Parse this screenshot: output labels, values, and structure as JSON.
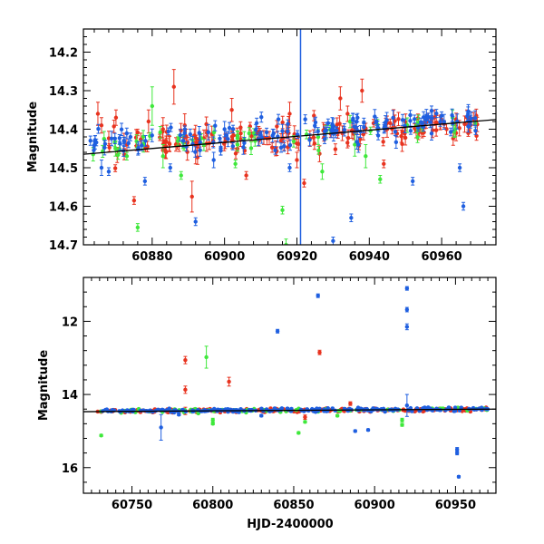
{
  "colors": {
    "red": "#e8331f",
    "green": "#3fe83b",
    "blue": "#1f5fe0",
    "fit": "#000000",
    "marker_line": "#1f5fe0"
  },
  "chart_data": [
    {
      "type": "scatter",
      "title": "",
      "xlabel": "",
      "ylabel": "Magnitude",
      "xlim": [
        60861,
        60975
      ],
      "ylim": [
        14.7,
        14.14
      ],
      "y_inverted": true,
      "x_ticks": [
        60880,
        60900,
        60920,
        60940,
        60960
      ],
      "x_tick_labels": [
        "60880",
        "60900",
        "60920",
        "60940",
        "60960"
      ],
      "y_ticks": [
        14.2,
        14.3,
        14.4,
        14.5,
        14.6,
        14.7
      ],
      "y_tick_labels": [
        "14.2",
        "14.3",
        "14.4",
        "14.5",
        "14.6",
        "14.7"
      ],
      "vertical_line_x": 60921,
      "fit_line": {
        "x": [
          60861,
          60975
        ],
        "y": [
          14.465,
          14.375
        ]
      },
      "series": [
        {
          "name": "red",
          "color": "red",
          "dense_band": {
            "x_start": 60862,
            "x_end": 60970,
            "count": 160,
            "y_start": 14.45,
            "y_end": 14.385,
            "scatter": 0.028,
            "err_min": 0.008,
            "err_max": 0.022,
            "seed": 11
          },
          "outliers": [
            [
              60865,
              14.36,
              0.03
            ],
            [
              60866,
              14.39,
              0.02
            ],
            [
              60870,
              14.37,
              0.02
            ],
            [
              60873,
              14.44,
              0.03
            ],
            [
              60875,
              14.585,
              0.01
            ],
            [
              60879,
              14.38,
              0.03
            ],
            [
              60883,
              14.4,
              0.03
            ],
            [
              60886,
              14.29,
              0.045
            ],
            [
              60889,
              14.39,
              0.03
            ],
            [
              60891,
              14.575,
              0.04
            ],
            [
              60892,
              14.44,
              0.05
            ],
            [
              60902,
              14.35,
              0.03
            ],
            [
              60906,
              14.52,
              0.01
            ],
            [
              60918,
              14.36,
              0.03
            ],
            [
              60920,
              14.48,
              0.02
            ],
            [
              60922,
              14.54,
              0.01
            ],
            [
              60932,
              14.32,
              0.03
            ],
            [
              60934,
              14.36,
              0.02
            ],
            [
              60938,
              14.3,
              0.03
            ],
            [
              60944,
              14.49,
              0.01
            ],
            [
              60958,
              14.37,
              0.02
            ],
            [
              60964,
              14.41,
              0.02
            ],
            [
              60967,
              14.37,
              0.02
            ]
          ]
        },
        {
          "name": "green",
          "color": "green",
          "dense_band": {
            "x_start": 60862,
            "x_end": 60970,
            "count": 45,
            "y_start": 14.45,
            "y_end": 14.39,
            "scatter": 0.025,
            "err_min": 0.008,
            "err_max": 0.02,
            "seed": 23
          },
          "outliers": [
            [
              60873,
              14.47,
              0.01
            ],
            [
              60876,
              14.655,
              0.01
            ],
            [
              60880,
              14.34,
              0.05
            ],
            [
              60883,
              14.47,
              0.03
            ],
            [
              60888,
              14.52,
              0.01
            ],
            [
              60903,
              14.49,
              0.01
            ],
            [
              60916,
              14.61,
              0.01
            ],
            [
              60917,
              14.7,
              0.015
            ],
            [
              60926,
              14.455,
              0.01
            ],
            [
              60927,
              14.51,
              0.02
            ],
            [
              60936,
              14.44,
              0.03
            ],
            [
              60939,
              14.47,
              0.03
            ],
            [
              60943,
              14.53,
              0.01
            ],
            [
              60963,
              14.37,
              0.02
            ]
          ]
        },
        {
          "name": "blue",
          "color": "blue",
          "dense_band": {
            "x_start": 60862,
            "x_end": 60970,
            "count": 140,
            "y_start": 14.44,
            "y_end": 14.375,
            "scatter": 0.025,
            "err_min": 0.008,
            "err_max": 0.02,
            "seed": 37
          },
          "outliers": [
            [
              60866,
              14.5,
              0.02
            ],
            [
              60868,
              14.51,
              0.01
            ],
            [
              60874,
              14.42,
              0.01
            ],
            [
              60878,
              14.535,
              0.01
            ],
            [
              60885,
              14.5,
              0.01
            ],
            [
              60889,
              14.41,
              0.01
            ],
            [
              60892,
              14.64,
              0.01
            ],
            [
              60897,
              14.48,
              0.02
            ],
            [
              60900,
              14.4,
              0.02
            ],
            [
              60910,
              14.415,
              0.01
            ],
            [
              60914,
              14.455,
              0.01
            ],
            [
              60918,
              14.5,
              0.01
            ],
            [
              60930,
              14.69,
              0.01
            ],
            [
              60935,
              14.63,
              0.01
            ],
            [
              60937,
              14.44,
              0.02
            ],
            [
              60942,
              14.38,
              0.01
            ],
            [
              60952,
              14.535,
              0.01
            ],
            [
              60960,
              14.365,
              0.01
            ],
            [
              60965,
              14.5,
              0.01
            ],
            [
              60966,
              14.6,
              0.01
            ]
          ]
        }
      ]
    },
    {
      "type": "scatter",
      "title": "",
      "xlabel": "HJD-2400000",
      "ylabel": "Magnitude",
      "xlim": [
        60720,
        60975
      ],
      "ylim": [
        16.7,
        10.8
      ],
      "y_inverted": true,
      "x_ticks": [
        60750,
        60800,
        60850,
        60900,
        60950
      ],
      "x_tick_labels": [
        "60750",
        "60800",
        "60850",
        "60900",
        "60950"
      ],
      "y_ticks": [
        12,
        14,
        16
      ],
      "y_tick_labels": [
        "12",
        "14",
        "16"
      ],
      "fit_line": {
        "x": [
          60720,
          60975
        ],
        "y": [
          14.47,
          14.4
        ]
      },
      "series": [
        {
          "name": "red",
          "color": "red",
          "dense_band": {
            "x_start": 60728,
            "x_end": 60970,
            "count": 220,
            "y_start": 14.46,
            "y_end": 14.41,
            "scatter": 0.035,
            "err_min": 0.01,
            "err_max": 0.03,
            "seed": 51
          },
          "outliers": [
            [
              60783,
              13.06,
              0.1
            ],
            [
              60783,
              13.87,
              0.1
            ],
            [
              60783,
              14.45,
              0.1
            ],
            [
              60810,
              13.65,
              0.12
            ],
            [
              60866,
              12.85,
              0.06
            ],
            [
              60857,
              14.62,
              0.06
            ],
            [
              60885,
              14.25,
              0.05
            ]
          ]
        },
        {
          "name": "green",
          "color": "green",
          "dense_band": {
            "x_start": 60728,
            "x_end": 60970,
            "count": 70,
            "y_start": 14.46,
            "y_end": 14.41,
            "scatter": 0.035,
            "err_min": 0.01,
            "err_max": 0.03,
            "seed": 63
          },
          "outliers": [
            [
              60731,
              15.12,
              0.03
            ],
            [
              60796,
              12.98,
              0.3
            ],
            [
              60800,
              14.7,
              0.05
            ],
            [
              60800,
              14.8,
              0.03
            ],
            [
              60853,
              15.05,
              0.03
            ],
            [
              60857,
              14.75,
              0.03
            ],
            [
              60877,
              14.58,
              0.03
            ],
            [
              60917,
              14.7,
              0.05
            ],
            [
              60917,
              14.83,
              0.04
            ]
          ]
        },
        {
          "name": "blue",
          "color": "blue",
          "dense_band": {
            "x_start": 60728,
            "x_end": 60970,
            "count": 200,
            "y_start": 14.45,
            "y_end": 14.4,
            "scatter": 0.035,
            "err_min": 0.01,
            "err_max": 0.03,
            "seed": 79
          },
          "outliers": [
            [
              60768,
              14.9,
              0.35
            ],
            [
              60779,
              14.55,
              0.03
            ],
            [
              60840,
              12.27,
              0.05
            ],
            [
              60865,
              11.3,
              0.05
            ],
            [
              60830,
              14.58,
              0.03
            ],
            [
              60888,
              15.0,
              0.03
            ],
            [
              60896,
              14.97,
              0.03
            ],
            [
              60920,
              11.1,
              0.05
            ],
            [
              60920,
              11.68,
              0.06
            ],
            [
              60920,
              12.15,
              0.08
            ],
            [
              60920,
              14.3,
              0.3
            ],
            [
              60951,
              15.5,
              0.05
            ],
            [
              60951,
              15.6,
              0.05
            ],
            [
              60952,
              16.25,
              0.03
            ]
          ]
        }
      ]
    }
  ]
}
